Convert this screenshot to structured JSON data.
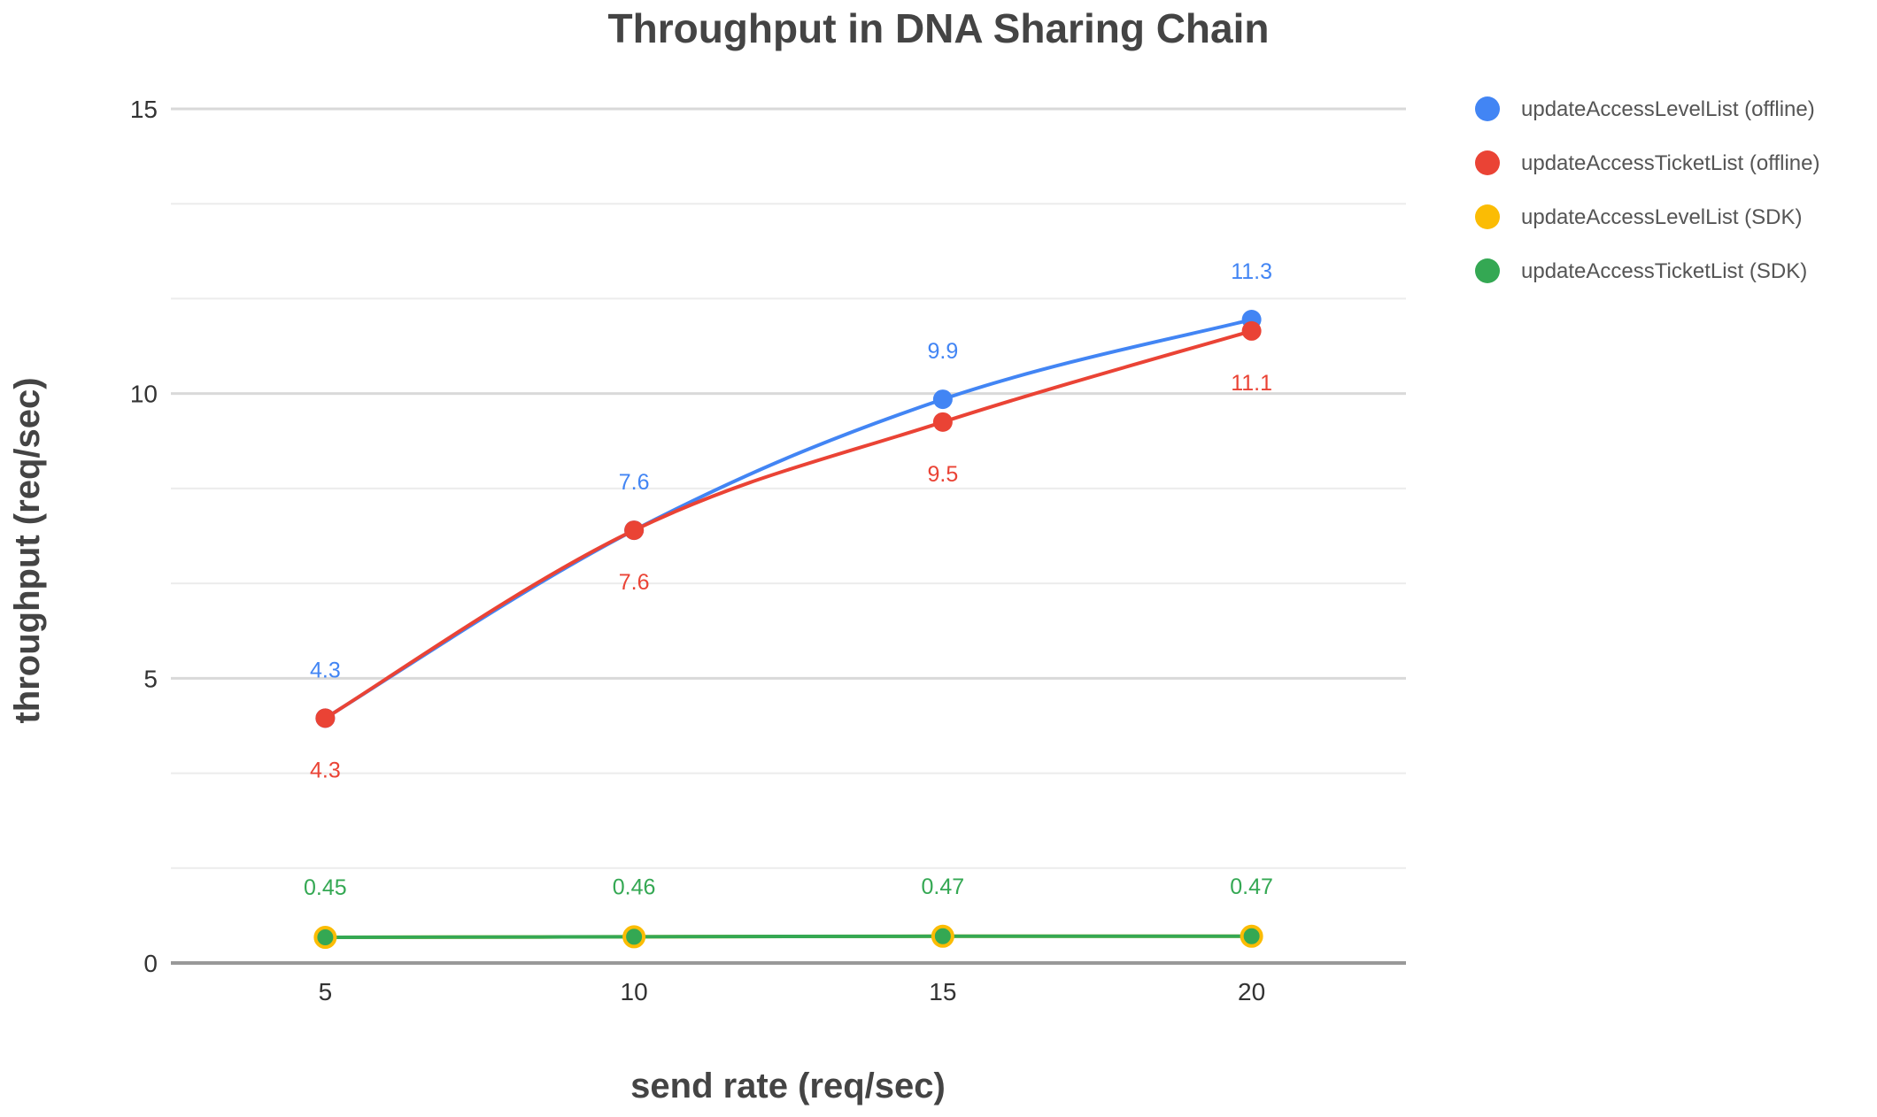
{
  "chart_data": {
    "type": "line",
    "title": "Throughput in DNA Sharing Chain",
    "xlabel": "send rate (req/sec)",
    "ylabel": "throughput (req/sec)",
    "x": [
      5,
      10,
      15,
      20
    ],
    "x_tick_labels": [
      "5",
      "10",
      "15",
      "20"
    ],
    "xlim": [
      2.5,
      22.5
    ],
    "ylim": [
      0,
      15
    ],
    "y_ticks": [
      0,
      5,
      10,
      15
    ],
    "y_tick_labels": [
      "0",
      "5",
      "10",
      "15"
    ],
    "y_minor_gridlines": [
      1.667,
      3.333,
      6.667,
      8.333,
      11.667,
      13.333
    ],
    "grid": true,
    "legend_position": "right",
    "series": [
      {
        "name": "updateAccessLevelList (offline)",
        "color": "#4285f4",
        "values": [
          4.3,
          7.6,
          9.9,
          11.3
        ],
        "data_labels": [
          "4.3",
          "7.6",
          "9.9",
          "11.3"
        ],
        "label_position": "above"
      },
      {
        "name": "updateAccessTicketList (offline)",
        "color": "#ea4335",
        "values": [
          4.3,
          7.6,
          9.5,
          11.1
        ],
        "data_labels": [
          "4.3",
          "7.6",
          "9.5",
          "11.1"
        ],
        "label_position": "below"
      },
      {
        "name": "updateAccessLevelList (SDK)",
        "color": "#fbbc04",
        "values": [
          0.45,
          0.46,
          0.47,
          0.47
        ],
        "data_labels": [],
        "label_position": "none"
      },
      {
        "name": "updateAccessTicketList (SDK)",
        "color": "#34a853",
        "values": [
          0.45,
          0.46,
          0.47,
          0.47
        ],
        "data_labels": [
          "0.45",
          "0.46",
          "0.47",
          "0.47"
        ],
        "label_position": "above"
      }
    ]
  }
}
